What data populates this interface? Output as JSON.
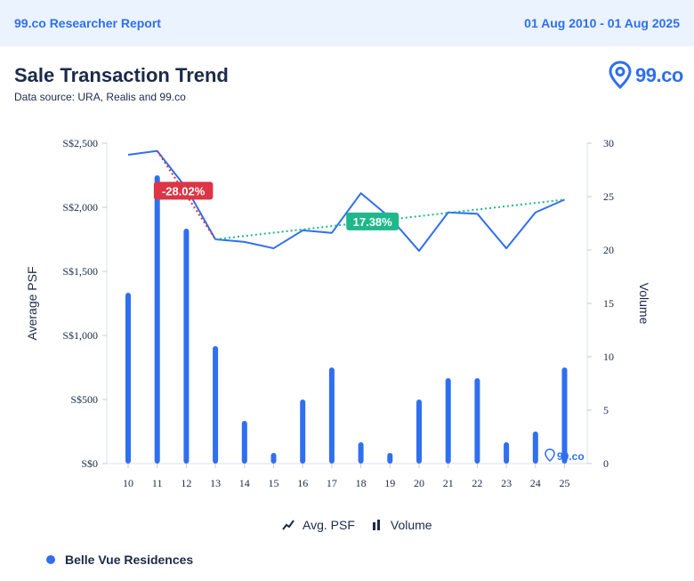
{
  "header": {
    "brand": "99.co Researcher Report",
    "date_range": "01 Aug 2010 - 01 Aug 2025"
  },
  "title": "Sale Transaction Trend",
  "source": "Data source: URA, Realis and 99.co",
  "logo": {
    "text": "99.co",
    "icon": "location-pin-icon"
  },
  "colors": {
    "accent": "#2f6ff0",
    "line": "#2f6ff0",
    "bar": "#2f6ff0",
    "decline": "#dc3545",
    "growth": "#1fb88a",
    "text": "#1b2a4a"
  },
  "legend": {
    "avg_psf": "Avg. PSF",
    "volume": "Volume"
  },
  "series_key": "Belle Vue Residences",
  "watermark": "99.co",
  "chart_data": {
    "type": "bar+line",
    "categories": [
      "10",
      "11",
      "12",
      "13",
      "14",
      "15",
      "16",
      "17",
      "18",
      "19",
      "20",
      "21",
      "22",
      "23",
      "24",
      "25"
    ],
    "ylabel": "Average PSF",
    "y2label": "Volume",
    "ylim": [
      0,
      2500
    ],
    "y2lim": [
      0,
      30
    ],
    "yticks": [
      "S$0",
      "S$500",
      "S$1,000",
      "S$1,500",
      "S$2,000",
      "S$2,500"
    ],
    "y2ticks": [
      "0",
      "5",
      "10",
      "15",
      "20",
      "25",
      "30"
    ],
    "series": [
      {
        "name": "Avg. PSF",
        "type": "line",
        "axis": "left",
        "values": [
          2410,
          2440,
          2150,
          1750,
          1730,
          1680,
          1820,
          1800,
          2110,
          1920,
          1660,
          1960,
          1950,
          1680,
          1960,
          2060
        ]
      },
      {
        "name": "Volume",
        "type": "bar",
        "axis": "right",
        "values": [
          16,
          27,
          22,
          11,
          4,
          1,
          6,
          9,
          2,
          1,
          6,
          8,
          8,
          2,
          3,
          9
        ]
      }
    ],
    "annotations": [
      {
        "label": "-28.02%",
        "from": "11",
        "to": "13",
        "trend": "down"
      },
      {
        "label": "17.38%",
        "from": "13",
        "to": "25",
        "trend": "up"
      }
    ],
    "grid": false,
    "legend_position": "bottom"
  }
}
